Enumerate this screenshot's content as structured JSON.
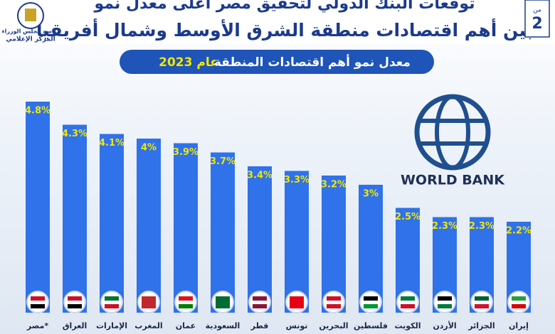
{
  "header": {
    "title_line1": "توقعات البنك الدولي لتحقيق مصر أعلى معدل نمو",
    "title_line2": "بين أهم اقتصادات منطقة الشرق الأوسط وشمال أفريقيا",
    "page_of": "من",
    "page_number": "2",
    "org_line1": "رئاسة مجلس الوزراء",
    "org_line2": "المركز الإعلامي"
  },
  "logo": {
    "text": "WORLD BANK"
  },
  "chart_data": {
    "type": "bar",
    "title": "معدل نمو أهم اقتصادات المنطقة",
    "title_highlight": "عام 2023",
    "categories": [
      "مصر*",
      "العراق",
      "الإمارات",
      "المغرب",
      "عمان",
      "السعودية",
      "قطر",
      "تونس",
      "البحرين",
      "فلسطين",
      "الكويت",
      "الأردن",
      "الجزائر",
      "إيران"
    ],
    "values": [
      4.8,
      4.3,
      4.1,
      4,
      3.9,
      3.7,
      3.4,
      3.3,
      3.2,
      3,
      2.5,
      2.3,
      2.3,
      2.2
    ],
    "value_labels": [
      "4.8%",
      "4.3%",
      "4.1%",
      "4%",
      "3.9%",
      "3.7%",
      "3.4%",
      "3.3%",
      "3.2%",
      "3%",
      "2.5%",
      "2.3%",
      "2.3%",
      "2.2%"
    ],
    "color": "#2f72ea",
    "label_color": "#f3e600"
  }
}
